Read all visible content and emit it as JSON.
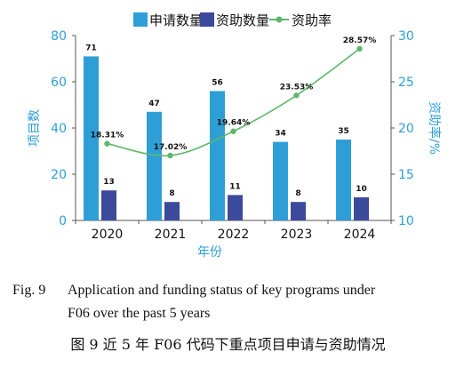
{
  "chart_data": {
    "type": "bar",
    "categories": [
      "2020",
      "2021",
      "2022",
      "2023",
      "2024"
    ],
    "series": [
      {
        "name": "申请数量",
        "type": "bar",
        "axis": "left",
        "color": "#2e9fd6",
        "values": [
          71,
          47,
          56,
          34,
          35
        ]
      },
      {
        "name": "资助数量",
        "type": "bar",
        "axis": "left",
        "color": "#3c4a9c",
        "values": [
          13,
          8,
          11,
          8,
          10
        ]
      },
      {
        "name": "资助率",
        "type": "line",
        "axis": "right",
        "color": "#5cb96a",
        "values": [
          18.31,
          17.02,
          19.64,
          23.53,
          28.57
        ]
      }
    ],
    "rate_labels": [
      "18.31%",
      "17.02%",
      "19.64%",
      "23.53%",
      "28.57%"
    ],
    "xlabel": "年份",
    "ylabel_left": "项目数",
    "ylabel_right": "资助率/%",
    "ylim_left": [
      0,
      80
    ],
    "ylim_right": [
      10,
      30
    ],
    "yticks_left": [
      "0",
      "20",
      "40",
      "60",
      "80"
    ],
    "yticks_right": [
      "10",
      "15",
      "20",
      "25",
      "30"
    ],
    "legend": "top",
    "grid": false
  },
  "caption": {
    "en_fig": "Fig. 9",
    "en_line1": "Application and funding status of key programs under",
    "en_line2": "F06 over the past 5 years",
    "zh": "图 9    近 5 年 F06 代码下重点项目申请与资助情况"
  }
}
